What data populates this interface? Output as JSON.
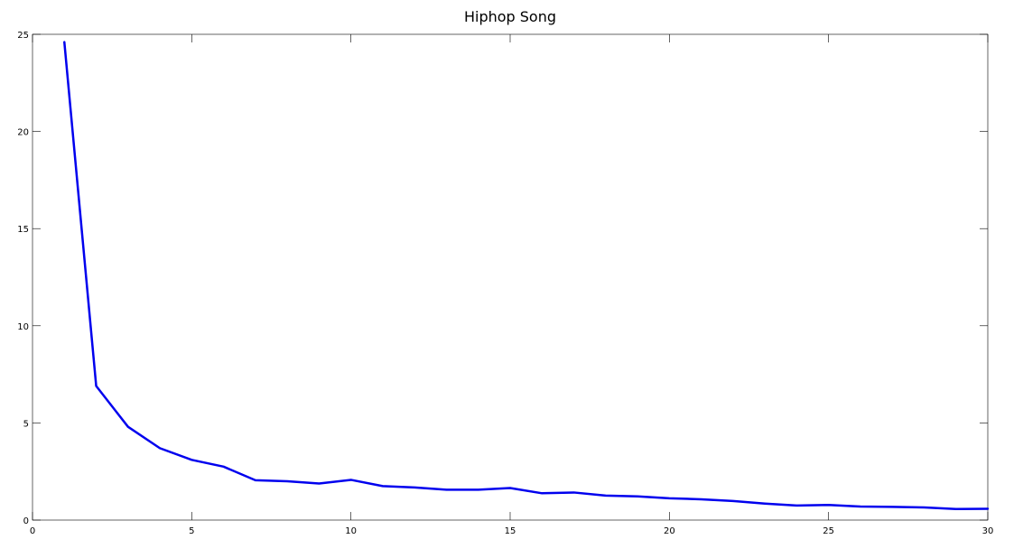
{
  "chart_data": {
    "type": "line",
    "title": "Hiphop Song",
    "xlabel": "",
    "ylabel": "",
    "xlim": [
      0,
      30
    ],
    "ylim": [
      0,
      25
    ],
    "x_ticks": [
      0,
      5,
      10,
      15,
      20,
      25,
      30
    ],
    "y_ticks": [
      0,
      5,
      10,
      15,
      20,
      25
    ],
    "grid": false,
    "legend": "none",
    "series": [
      {
        "color": "#0000ee",
        "x": [
          1,
          2,
          3,
          4,
          5,
          6,
          7,
          8,
          9,
          10,
          11,
          12,
          13,
          14,
          15,
          16,
          17,
          18,
          19,
          20,
          21,
          22,
          23,
          24,
          25,
          26,
          27,
          28,
          29,
          30
        ],
        "y": [
          24.6,
          6.9,
          4.8,
          3.7,
          3.1,
          2.75,
          2.05,
          2.0,
          1.88,
          2.07,
          1.75,
          1.68,
          1.56,
          1.56,
          1.65,
          1.38,
          1.42,
          1.26,
          1.22,
          1.12,
          1.07,
          0.98,
          0.85,
          0.75,
          0.78,
          0.7,
          0.68,
          0.65,
          0.57,
          0.58
        ]
      }
    ]
  }
}
